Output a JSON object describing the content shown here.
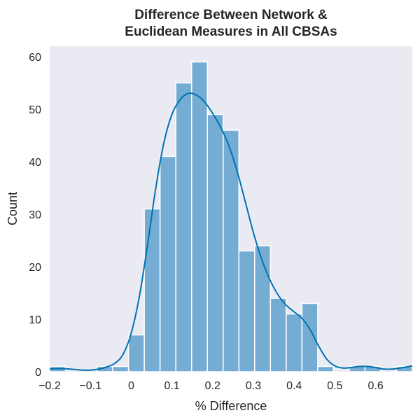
{
  "chart_data": {
    "type": "bar",
    "title_lines": [
      "Difference Between Network &",
      "Euclidean Measures in All CBSAs"
    ],
    "xlabel": "% Difference",
    "ylabel": "Count",
    "xlim": [
      -0.2,
      0.69
    ],
    "ylim": [
      0,
      62
    ],
    "x_ticks": [
      -0.2,
      -0.1,
      0,
      0.1,
      0.2,
      0.3,
      0.4,
      0.5,
      0.6
    ],
    "x_tick_labels": [
      "−0.2",
      "−0.1",
      "0",
      "0.1",
      "0.2",
      "0.3",
      "0.4",
      "0.5",
      "0.6"
    ],
    "y_ticks": [
      0,
      10,
      20,
      30,
      40,
      50,
      60
    ],
    "y_tick_labels": [
      "0",
      "10",
      "20",
      "30",
      "40",
      "50",
      "60"
    ],
    "grid": false,
    "bar_color": "#74acd4",
    "bar_edge_color": "#ffffff",
    "kde_color": "#0072b2",
    "background_color": "#eaeaf2",
    "bins": [
      {
        "x0": -0.2,
        "x1": -0.1613,
        "count": 1
      },
      {
        "x0": -0.1613,
        "x1": -0.1226,
        "count": 0
      },
      {
        "x0": -0.1226,
        "x1": -0.0839,
        "count": 0
      },
      {
        "x0": -0.0839,
        "x1": -0.0452,
        "count": 1
      },
      {
        "x0": -0.0452,
        "x1": -0.0065,
        "count": 1
      },
      {
        "x0": -0.0065,
        "x1": 0.0322,
        "count": 7
      },
      {
        "x0": 0.0322,
        "x1": 0.0709,
        "count": 31
      },
      {
        "x0": 0.0709,
        "x1": 0.1096,
        "count": 41
      },
      {
        "x0": 0.1096,
        "x1": 0.1483,
        "count": 55
      },
      {
        "x0": 0.1483,
        "x1": 0.187,
        "count": 59
      },
      {
        "x0": 0.187,
        "x1": 0.2257,
        "count": 49
      },
      {
        "x0": 0.2257,
        "x1": 0.2644,
        "count": 46
      },
      {
        "x0": 0.2644,
        "x1": 0.3031,
        "count": 23
      },
      {
        "x0": 0.3031,
        "x1": 0.3418,
        "count": 24
      },
      {
        "x0": 0.3418,
        "x1": 0.3805,
        "count": 14
      },
      {
        "x0": 0.3805,
        "x1": 0.4192,
        "count": 11
      },
      {
        "x0": 0.4192,
        "x1": 0.4579,
        "count": 13
      },
      {
        "x0": 0.4579,
        "x1": 0.4966,
        "count": 1
      },
      {
        "x0": 0.4966,
        "x1": 0.5353,
        "count": 0
      },
      {
        "x0": 0.5353,
        "x1": 0.574,
        "count": 1
      },
      {
        "x0": 0.574,
        "x1": 0.6127,
        "count": 1
      },
      {
        "x0": 0.6127,
        "x1": 0.6514,
        "count": 0
      },
      {
        "x0": 0.6514,
        "x1": 0.69,
        "count": 1
      }
    ],
    "kde": {
      "x": [
        -0.2,
        -0.18,
        -0.15,
        -0.12,
        -0.1,
        -0.08,
        -0.06,
        -0.04,
        -0.02,
        0,
        0.02,
        0.04,
        0.06,
        0.08,
        0.1,
        0.12,
        0.14,
        0.16,
        0.18,
        0.2,
        0.22,
        0.24,
        0.26,
        0.28,
        0.3,
        0.32,
        0.34,
        0.36,
        0.38,
        0.4,
        0.42,
        0.44,
        0.46,
        0.48,
        0.5,
        0.52,
        0.54,
        0.56,
        0.58,
        0.6,
        0.62,
        0.64,
        0.66,
        0.69
      ],
      "y": [
        0.5,
        0.6,
        0.5,
        0.3,
        0.3,
        0.5,
        0.9,
        1.6,
        3.3,
        7.3,
        14.3,
        24.1,
        34.8,
        43.5,
        49,
        51.8,
        53,
        52.7,
        51.4,
        49.2,
        46.5,
        43,
        38.2,
        32.4,
        26.5,
        21.5,
        17.6,
        14.7,
        12.7,
        11.4,
        10.1,
        7.9,
        4.9,
        2.4,
        1.1,
        0.7,
        0.8,
        1,
        1,
        0.8,
        0.5,
        0.5,
        0.7,
        1.1
      ]
    }
  }
}
